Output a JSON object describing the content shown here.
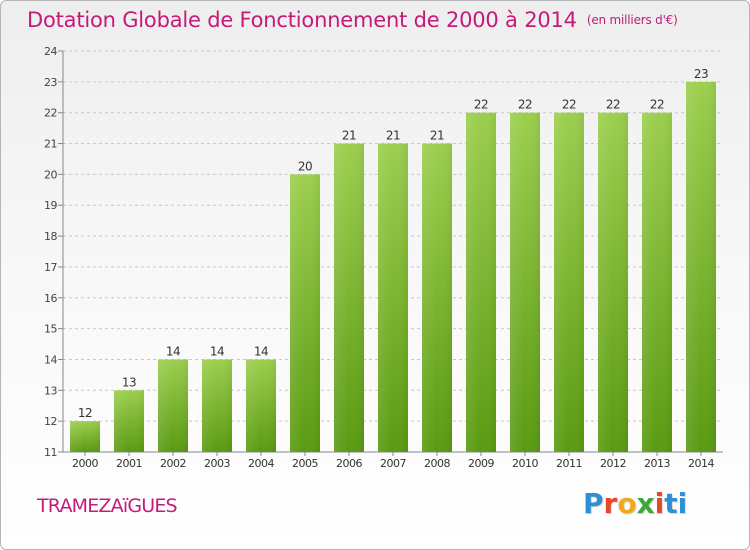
{
  "colors": {
    "title": "#c51a7a",
    "bar_top": "#9ccf4e",
    "bar_bottom": "#5a9a12",
    "axis": "#888888",
    "grid": "#c8c8c8",
    "logo": [
      "#2e8fd6",
      "#e8462b",
      "#f2a81d",
      "#3aa83a",
      "#e8462b",
      "#2e8fd6"
    ]
  },
  "header": {
    "title": "Dotation Globale de Fonctionnement de 2000 à 2014",
    "unit": "(en milliers d'€)"
  },
  "footer": {
    "town": "TRAMEZAïGUES",
    "logo_letters": [
      "P",
      "r",
      "o",
      "x",
      "i",
      "t",
      "i"
    ]
  },
  "chart_data": {
    "type": "bar",
    "title": "Dotation Globale de Fonctionnement de 2000 à 2014",
    "unit": "(en milliers d'€)",
    "categories": [
      "2000",
      "2001",
      "2002",
      "2003",
      "2004",
      "2005",
      "2006",
      "2007",
      "2008",
      "2009",
      "2010",
      "2011",
      "2012",
      "2013",
      "2014"
    ],
    "values": [
      12,
      13,
      14,
      14,
      14,
      20,
      21,
      21,
      21,
      22,
      22,
      22,
      22,
      22,
      23
    ],
    "ylim": [
      11,
      24
    ],
    "yticks": [
      11,
      12,
      13,
      14,
      15,
      16,
      17,
      18,
      19,
      20,
      21,
      22,
      23,
      24
    ],
    "grid": true,
    "data_labels": true
  }
}
